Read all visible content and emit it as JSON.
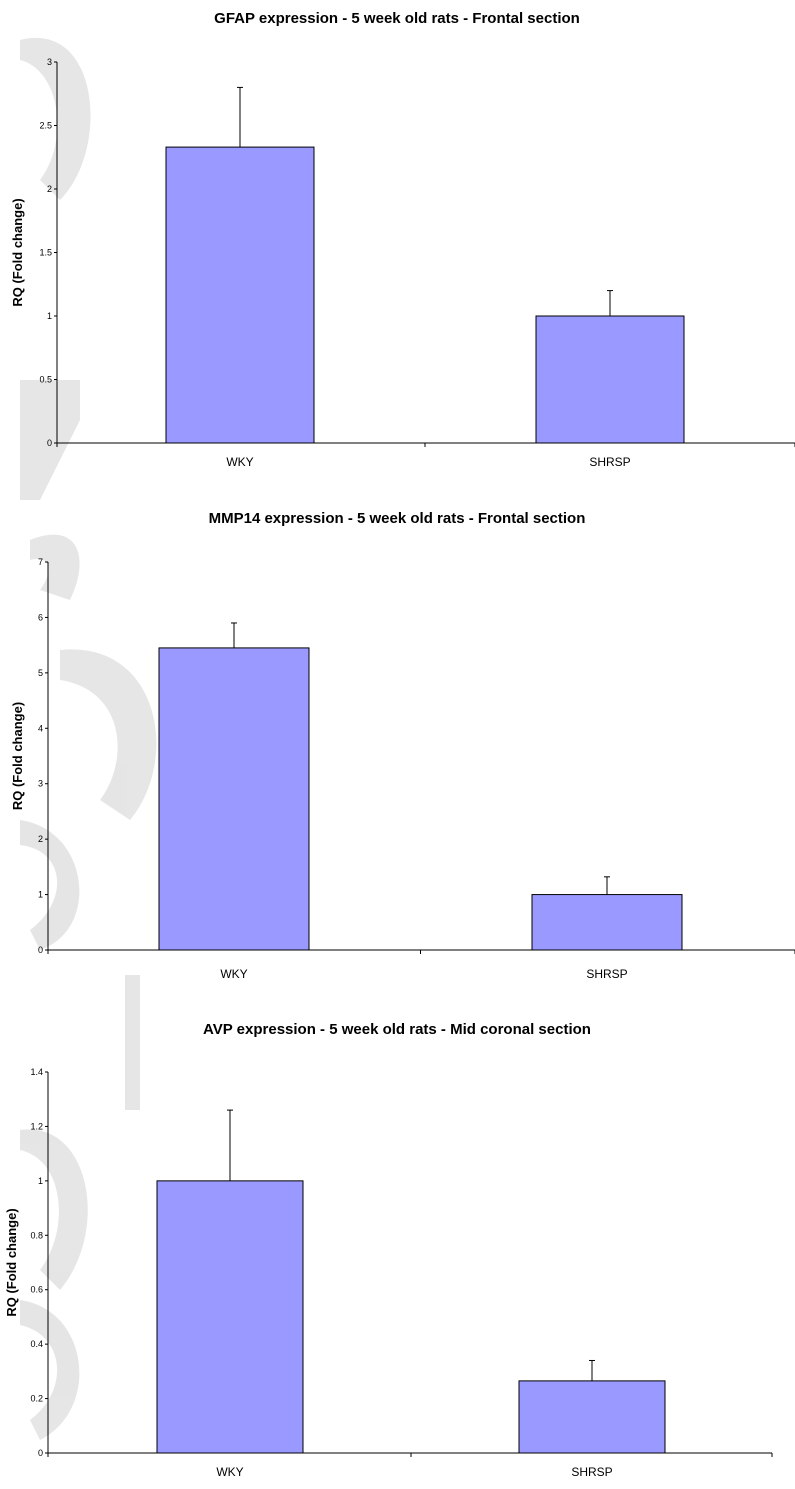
{
  "chart_data": [
    {
      "type": "bar",
      "title": "GFAP expression - 5 week old rats - Frontal section",
      "xlabel": "",
      "ylabel": "RQ (Fold change)",
      "categories": [
        "WKY",
        "SHRSP"
      ],
      "values": [
        2.33,
        1.0
      ],
      "error_bars": [
        0.47,
        0.2
      ],
      "ylim": [
        0,
        3
      ],
      "yticks": [
        0,
        0.5,
        1,
        1.5,
        2,
        2.5,
        3
      ],
      "ytick_labels": [
        "0",
        "0.5",
        "1",
        "1.5",
        "2",
        "2.5",
        "3"
      ],
      "bar_color": "#9999ff",
      "grid": false
    },
    {
      "type": "bar",
      "title": "MMP14 expression - 5 week old rats - Frontal section",
      "xlabel": "",
      "ylabel": "RQ (Fold change)",
      "categories": [
        "WKY",
        "SHRSP"
      ],
      "values": [
        5.45,
        1.0
      ],
      "error_bars": [
        0.45,
        0.32
      ],
      "ylim": [
        0,
        7
      ],
      "yticks": [
        0,
        1,
        2,
        3,
        4,
        5,
        6,
        7
      ],
      "ytick_labels": [
        "0",
        "1",
        "2",
        "3",
        "4",
        "5",
        "6",
        "7"
      ],
      "bar_color": "#9999ff",
      "grid": false
    },
    {
      "type": "bar",
      "title": "AVP expression - 5 week old rats - Mid coronal section",
      "xlabel": "",
      "ylabel": "RQ (Fold change)",
      "categories": [
        "WKY",
        "SHRSP"
      ],
      "values": [
        1.0,
        0.265
      ],
      "error_bars": [
        0.26,
        0.075
      ],
      "ylim": [
        0,
        1.4
      ],
      "yticks": [
        0,
        0.2,
        0.4,
        0.6,
        0.8,
        1,
        1.2,
        1.4
      ],
      "ytick_labels": [
        "0",
        "0.2",
        "0.4",
        "0.6",
        "0.8",
        "1",
        "1.2",
        "1.4"
      ],
      "bar_color": "#9999ff",
      "grid": false
    }
  ]
}
